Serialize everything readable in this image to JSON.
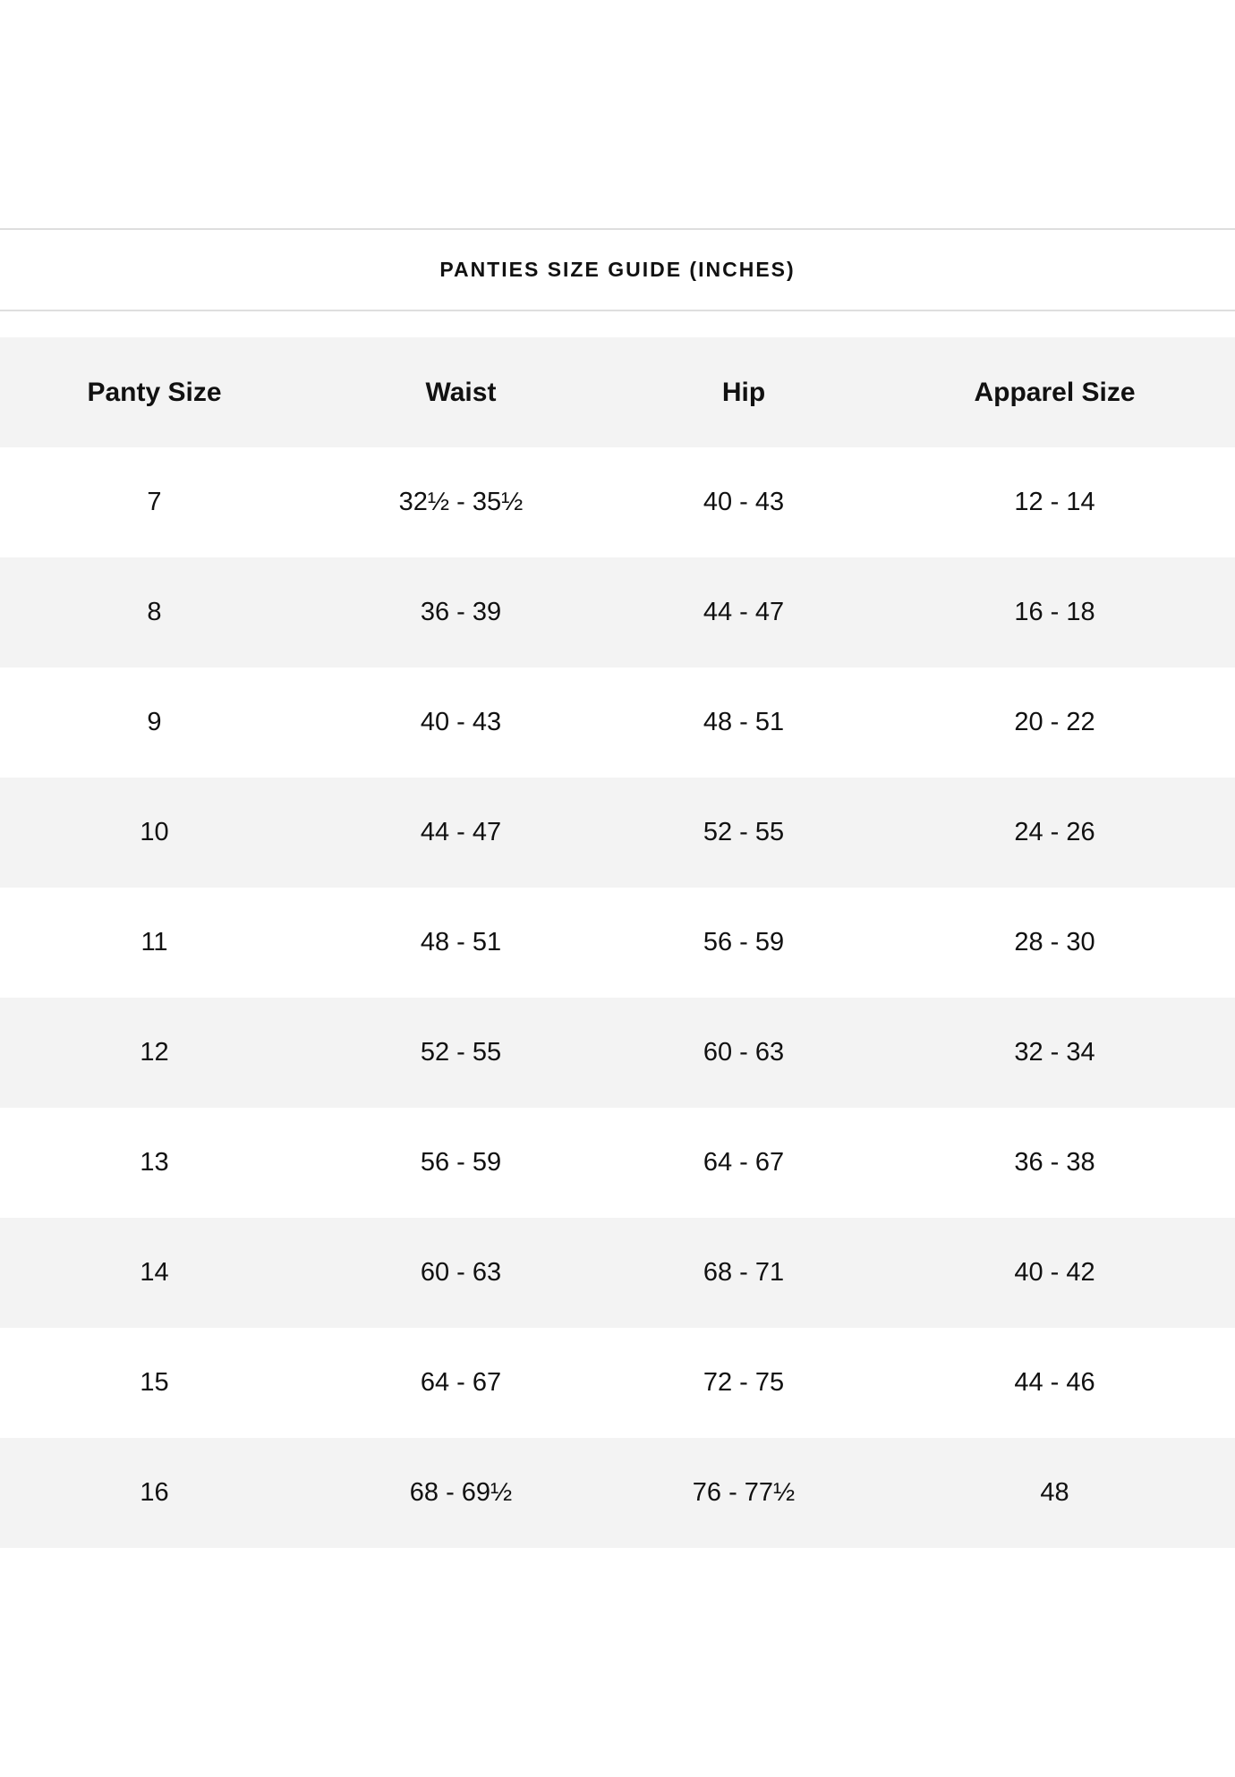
{
  "title": "PANTIES SIZE GUIDE (INCHES)",
  "table": {
    "headers": [
      "Panty Size",
      "Waist",
      "Hip",
      "Apparel Size"
    ],
    "rows": [
      [
        "7",
        "32½ - 35½",
        "40 - 43",
        "12 - 14"
      ],
      [
        "8",
        "36 - 39",
        "44 - 47",
        "16 - 18"
      ],
      [
        "9",
        "40 - 43",
        "48 - 51",
        "20 - 22"
      ],
      [
        "10",
        "44 - 47",
        "52 - 55",
        "24 - 26"
      ],
      [
        "11",
        "48 - 51",
        "56 - 59",
        "28 - 30"
      ],
      [
        "12",
        "52 - 55",
        "60 - 63",
        "32 - 34"
      ],
      [
        "13",
        "56 - 59",
        "64 - 67",
        "36 - 38"
      ],
      [
        "14",
        "60 - 63",
        "68 - 71",
        "40 - 42"
      ],
      [
        "15",
        "64 - 67",
        "72 - 75",
        "44 - 46"
      ],
      [
        "16",
        "68 - 69½",
        "76 - 77½",
        "48"
      ]
    ]
  },
  "colors": {
    "stripe": "#f3f3f3",
    "divider": "#dedede",
    "text": "#111111"
  }
}
